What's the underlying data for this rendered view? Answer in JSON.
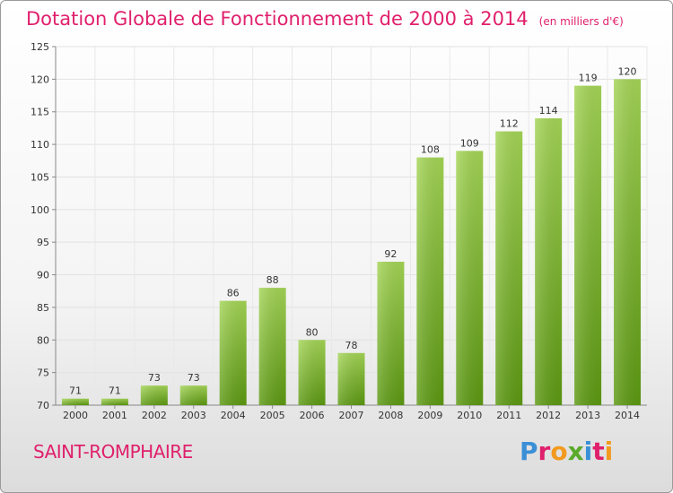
{
  "title": "Dotation Globale de Fonctionnement de 2000 à 2014",
  "unit_note": "(en milliers d'€)",
  "commune": "SAINT-ROMPHAIRE",
  "logo_text": "Proxiti",
  "colors": {
    "title": "#e0206c",
    "bar_light": "#9ed04e",
    "bar_dark": "#5e9a14",
    "grid": "#e2e2e2"
  },
  "chart_data": {
    "type": "bar",
    "categories": [
      "2000",
      "2001",
      "2002",
      "2003",
      "2004",
      "2005",
      "2006",
      "2007",
      "2008",
      "2009",
      "2010",
      "2011",
      "2012",
      "2013",
      "2014"
    ],
    "values": [
      71,
      71,
      73,
      73,
      86,
      88,
      80,
      78,
      92,
      108,
      109,
      112,
      114,
      119,
      120
    ],
    "title": "Dotation Globale de Fonctionnement de 2000 à 2014",
    "subtitle": "(en milliers d'€)",
    "ylim": [
      70,
      125
    ],
    "yticks": [
      70,
      75,
      80,
      85,
      90,
      95,
      100,
      105,
      110,
      115,
      120,
      125
    ],
    "grid": true,
    "data_labels": true
  }
}
